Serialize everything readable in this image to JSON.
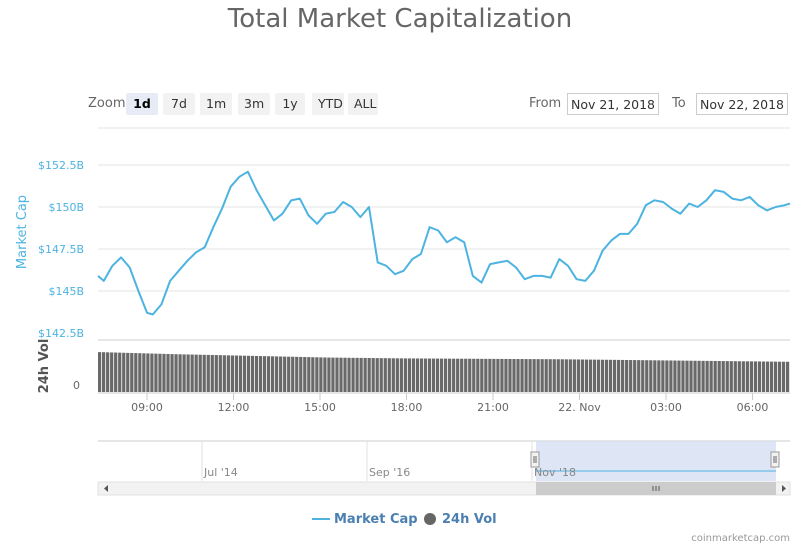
{
  "title": "Total Market Capitalization",
  "zoom": {
    "label": "Zoom",
    "buttons": [
      "1d",
      "7d",
      "1m",
      "3m",
      "1y",
      "YTD",
      "ALL"
    ],
    "active": "1d"
  },
  "range": {
    "from_label": "From",
    "from_value": "Nov 21, 2018",
    "to_label": "To",
    "to_value": "Nov 22, 2018"
  },
  "legend": {
    "market_cap": "Market Cap",
    "volume": "24h Vol"
  },
  "credit": "coinmarketcap.com",
  "colors": {
    "market_cap": "#4db3e0",
    "volume": "#696969",
    "navigator_fill": "#d6dff2"
  },
  "chart_data": {
    "type": "line",
    "title": "Total Market Capitalization",
    "xlabel": "",
    "ylabel": "Market Cap",
    "y2label": "24h Vol",
    "ylim": [
      142.5,
      152.5
    ],
    "y_unit": "billion USD",
    "yticks": [
      "$142.5B",
      "$145B",
      "$147.5B",
      "$150B",
      "$152.5B"
    ],
    "xticks": [
      "09:00",
      "12:00",
      "15:00",
      "18:00",
      "21:00",
      "22. Nov",
      "03:00",
      "06:00"
    ],
    "x_range_hours": [
      7.3,
      31.3
    ],
    "xtick_hours": [
      9,
      12,
      15,
      18,
      21,
      24,
      27,
      30
    ],
    "vol_ytick": "0",
    "grid": true,
    "series": [
      {
        "name": "Market Cap",
        "x_hours": [
          7.3,
          7.5,
          7.8,
          8.1,
          8.4,
          8.7,
          9.0,
          9.2,
          9.5,
          9.8,
          10.1,
          10.4,
          10.7,
          11.0,
          11.3,
          11.6,
          11.9,
          12.2,
          12.5,
          12.8,
          13.1,
          13.4,
          13.7,
          14.0,
          14.3,
          14.6,
          14.9,
          15.2,
          15.5,
          15.8,
          16.1,
          16.4,
          16.7,
          17.0,
          17.3,
          17.6,
          17.9,
          18.2,
          18.5,
          18.8,
          19.1,
          19.4,
          19.7,
          20.0,
          20.3,
          20.6,
          20.9,
          21.2,
          21.5,
          21.8,
          22.1,
          22.4,
          22.7,
          23.0,
          23.3,
          23.6,
          23.9,
          24.2,
          24.5,
          24.8,
          25.1,
          25.4,
          25.7,
          26.0,
          26.3,
          26.6,
          26.9,
          27.2,
          27.5,
          27.8,
          28.1,
          28.4,
          28.7,
          29.0,
          29.3,
          29.6,
          29.9,
          30.2,
          30.5,
          30.8,
          31.1,
          31.3
        ],
        "values": [
          145.9,
          145.6,
          146.5,
          147.0,
          146.4,
          145.0,
          143.7,
          143.6,
          144.2,
          145.6,
          146.2,
          146.8,
          147.3,
          147.6,
          148.8,
          149.9,
          151.2,
          151.8,
          152.1,
          151.0,
          150.1,
          149.2,
          149.6,
          150.4,
          150.5,
          149.5,
          149.0,
          149.6,
          149.7,
          150.3,
          150.0,
          149.4,
          150.0,
          146.7,
          146.5,
          146.0,
          146.2,
          146.9,
          147.2,
          148.8,
          148.6,
          147.9,
          148.2,
          147.9,
          145.9,
          145.5,
          146.6,
          146.7,
          146.8,
          146.4,
          145.7,
          145.9,
          145.9,
          145.8,
          146.9,
          146.5,
          145.7,
          145.6,
          146.2,
          147.4,
          148.0,
          148.4,
          148.4,
          149.0,
          150.1,
          150.4,
          150.3,
          149.9,
          149.6,
          150.2,
          150.0,
          150.4,
          151.0,
          150.9,
          150.5,
          150.4,
          150.6,
          150.1,
          149.8,
          150.0,
          150.1,
          150.2
        ]
      },
      {
        "name": "24h Vol",
        "type": "bar",
        "relative_values": [
          0.95,
          0.9,
          0.86,
          0.82,
          0.8,
          0.79,
          0.78,
          0.76,
          0.74,
          0.72
        ]
      }
    ],
    "navigator": {
      "labels": [
        "Jul '14",
        "Sep '16",
        "Nov '18"
      ]
    }
  }
}
